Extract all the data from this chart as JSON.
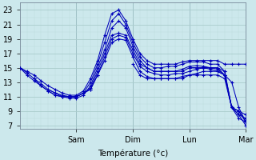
{
  "xlabel": "Température (°c)",
  "bg_color": "#cce8ec",
  "grid_color_major": "#aacccc",
  "grid_color_minor": "#bbdddd",
  "line_color": "#0000bb",
  "ylim": [
    6.5,
    24.0
  ],
  "xlim": [
    0.0,
    96.0
  ],
  "yticks": [
    7,
    9,
    11,
    13,
    15,
    17,
    19,
    21,
    23
  ],
  "day_ticks": [
    24,
    48,
    72,
    96
  ],
  "day_labels": [
    "Sam",
    "Dim",
    "Lun",
    "Mar"
  ],
  "series": [
    {
      "x": [
        0,
        3,
        6,
        9,
        12,
        15,
        18,
        21,
        24,
        27,
        30,
        33,
        36,
        39,
        42,
        45,
        48,
        51,
        54,
        57,
        60,
        63,
        66,
        69,
        72,
        75,
        78,
        81,
        84,
        87,
        90,
        93,
        96
      ],
      "y": [
        15.0,
        14.5,
        14.0,
        13.2,
        12.5,
        12.0,
        11.5,
        11.2,
        11.2,
        11.8,
        13.5,
        16.0,
        19.5,
        22.5,
        23.0,
        21.5,
        19.0,
        17.0,
        16.0,
        15.5,
        15.5,
        15.5,
        15.5,
        15.8,
        16.0,
        16.0,
        16.0,
        16.0,
        16.0,
        15.5,
        15.5,
        15.5,
        15.5
      ]
    },
    {
      "x": [
        0,
        3,
        6,
        9,
        12,
        15,
        18,
        21,
        24,
        27,
        30,
        33,
        36,
        39,
        42,
        45,
        48,
        51,
        54,
        57,
        60,
        63,
        66,
        69,
        72,
        75,
        78,
        81,
        84,
        87,
        90,
        93,
        96
      ],
      "y": [
        15.0,
        14.3,
        13.5,
        12.8,
        12.0,
        11.5,
        11.2,
        11.0,
        11.0,
        11.5,
        13.0,
        15.5,
        18.5,
        21.5,
        22.5,
        21.0,
        18.5,
        16.5,
        15.5,
        15.0,
        15.0,
        15.2,
        15.2,
        15.5,
        15.8,
        15.8,
        15.8,
        15.5,
        15.5,
        14.5,
        9.5,
        8.5,
        8.0
      ]
    },
    {
      "x": [
        0,
        3,
        6,
        9,
        12,
        15,
        18,
        21,
        24,
        27,
        30,
        33,
        36,
        39,
        42,
        45,
        48,
        51,
        54,
        57,
        60,
        63,
        66,
        69,
        72,
        75,
        78,
        81,
        84,
        87,
        90,
        93,
        96
      ],
      "y": [
        15.0,
        14.0,
        13.2,
        12.5,
        11.8,
        11.2,
        11.0,
        10.8,
        10.8,
        11.2,
        12.5,
        15.0,
        17.5,
        20.5,
        21.5,
        20.5,
        18.0,
        16.0,
        15.0,
        14.5,
        14.5,
        14.5,
        14.5,
        14.8,
        15.2,
        15.3,
        15.2,
        15.0,
        15.0,
        14.0,
        9.5,
        8.0,
        7.5
      ]
    },
    {
      "x": [
        6,
        9,
        12,
        15,
        18,
        21,
        24,
        27,
        30,
        33,
        36,
        39,
        42,
        45,
        48,
        51,
        54,
        57,
        60,
        63,
        66,
        69,
        72,
        75,
        78,
        81,
        84,
        87,
        90,
        93,
        96
      ],
      "y": [
        13.5,
        12.5,
        11.8,
        11.2,
        11.0,
        11.0,
        11.0,
        11.5,
        12.2,
        14.5,
        17.0,
        19.5,
        19.8,
        19.5,
        17.5,
        15.5,
        15.0,
        14.5,
        14.5,
        14.5,
        14.5,
        14.5,
        15.0,
        15.0,
        15.0,
        15.0,
        14.8,
        14.0,
        9.5,
        9.0,
        7.5
      ]
    },
    {
      "x": [
        12,
        15,
        18,
        21,
        24,
        27,
        30,
        33,
        36,
        39,
        42,
        45,
        48,
        51,
        54,
        57,
        60,
        63,
        66,
        69,
        72,
        75,
        78,
        81,
        84,
        87,
        90,
        93,
        96
      ],
      "y": [
        12.0,
        11.5,
        11.0,
        11.0,
        11.0,
        11.5,
        12.0,
        14.0,
        16.5,
        19.0,
        19.5,
        19.2,
        17.0,
        15.2,
        14.5,
        14.2,
        14.0,
        14.0,
        14.2,
        14.2,
        14.5,
        14.8,
        15.0,
        15.0,
        15.0,
        14.5,
        9.5,
        9.0,
        8.5
      ]
    },
    {
      "x": [
        24,
        27,
        30,
        33,
        36,
        39,
        42,
        45,
        48,
        51,
        54,
        57,
        60,
        63,
        66,
        69,
        72,
        75,
        78,
        81,
        84,
        87,
        90,
        93,
        96
      ],
      "y": [
        11.0,
        11.5,
        12.0,
        14.0,
        16.0,
        18.5,
        19.0,
        18.8,
        16.5,
        14.5,
        13.8,
        13.5,
        13.5,
        13.5,
        13.5,
        13.8,
        14.0,
        14.2,
        14.5,
        14.5,
        14.5,
        14.0,
        9.5,
        8.5,
        7.0
      ]
    },
    {
      "x": [
        48,
        51,
        54,
        57,
        60,
        63,
        66,
        69,
        72,
        75,
        78,
        81,
        84,
        87,
        90,
        93,
        96
      ],
      "y": [
        15.5,
        14.0,
        13.5,
        13.5,
        13.5,
        13.5,
        13.5,
        13.5,
        14.0,
        14.0,
        14.0,
        14.0,
        14.0,
        13.5,
        9.5,
        9.0,
        7.5
      ]
    },
    {
      "x": [
        72,
        75,
        78,
        81,
        84,
        87,
        90,
        93,
        96
      ],
      "y": [
        15.0,
        15.0,
        15.0,
        14.8,
        14.5,
        14.0,
        13.0,
        9.5,
        7.5
      ]
    }
  ]
}
